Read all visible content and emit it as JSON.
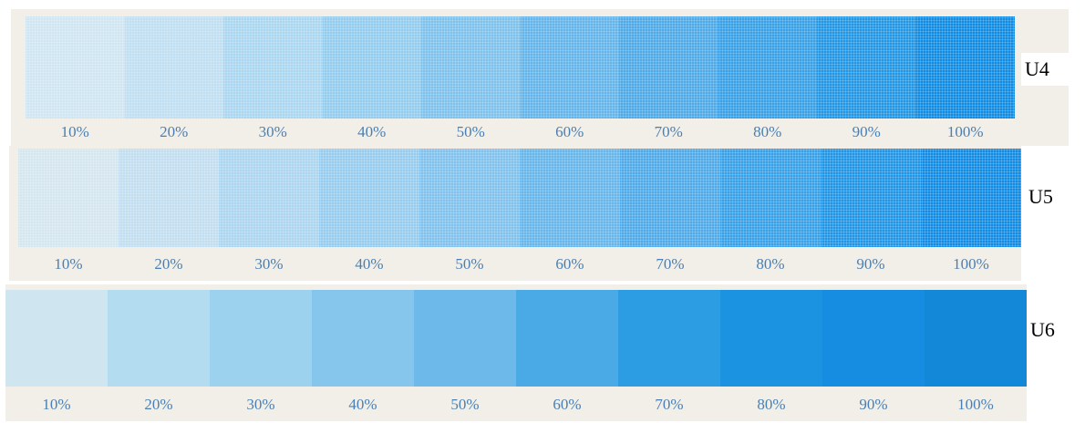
{
  "colors": {
    "paper": "#f1efe8",
    "label_text": "#4a7fb3",
    "tag_text": "#000000",
    "halftone_dot": "#ffffff"
  },
  "strips": [
    {
      "id": "U4",
      "label": "U4",
      "style": "halftone",
      "patches": [
        {
          "label": "10%",
          "color": "#cfe5f2"
        },
        {
          "label": "20%",
          "color": "#bfdff2"
        },
        {
          "label": "30%",
          "color": "#aad6f0"
        },
        {
          "label": "40%",
          "color": "#93ccee"
        },
        {
          "label": "50%",
          "color": "#7ec1ec"
        },
        {
          "label": "60%",
          "color": "#63b4ea"
        },
        {
          "label": "70%",
          "color": "#4ea9e7"
        },
        {
          "label": "80%",
          "color": "#38a0e6"
        },
        {
          "label": "90%",
          "color": "#2196e4"
        },
        {
          "label": "100%",
          "color": "#0f8be2"
        }
      ]
    },
    {
      "id": "U5",
      "label": "U5",
      "style": "halftone",
      "patches": [
        {
          "label": "10%",
          "color": "#d4e6ef"
        },
        {
          "label": "20%",
          "color": "#c2def0"
        },
        {
          "label": "30%",
          "color": "#acd5ef"
        },
        {
          "label": "40%",
          "color": "#97ccee"
        },
        {
          "label": "50%",
          "color": "#80c1ec"
        },
        {
          "label": "60%",
          "color": "#66b5ea"
        },
        {
          "label": "70%",
          "color": "#4ea9e8"
        },
        {
          "label": "80%",
          "color": "#37a0e7"
        },
        {
          "label": "90%",
          "color": "#1f95e5"
        },
        {
          "label": "100%",
          "color": "#108be3"
        }
      ]
    },
    {
      "id": "U6",
      "label": "U6",
      "style": "solid",
      "patches": [
        {
          "label": "10%",
          "color": "#cfe6f0"
        },
        {
          "label": "20%",
          "color": "#b3dcf0"
        },
        {
          "label": "30%",
          "color": "#9dd2ef"
        },
        {
          "label": "40%",
          "color": "#86c6ec"
        },
        {
          "label": "50%",
          "color": "#6db9ea"
        },
        {
          "label": "60%",
          "color": "#4aaae6"
        },
        {
          "label": "70%",
          "color": "#2c9ce3"
        },
        {
          "label": "80%",
          "color": "#1b93e1"
        },
        {
          "label": "90%",
          "color": "#168de0"
        },
        {
          "label": "100%",
          "color": "#1488d8"
        }
      ]
    }
  ]
}
